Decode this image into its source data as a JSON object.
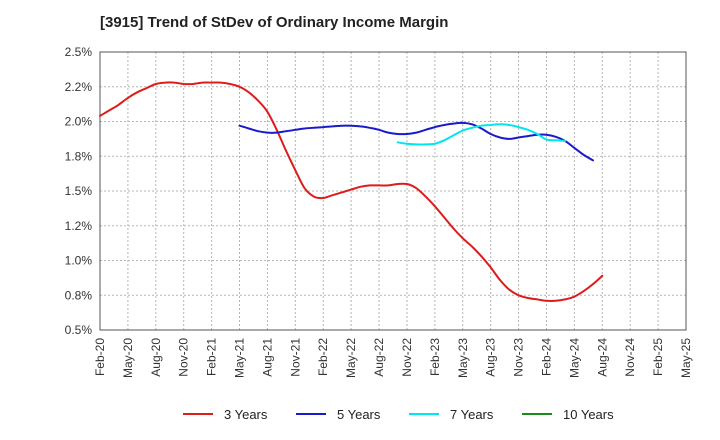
{
  "chart_data": {
    "type": "line",
    "title": "[3915]  Trend of StDev of Ordinary Income Margin",
    "xlabel": "",
    "ylabel": "",
    "ylim": [
      0.5,
      2.5
    ],
    "y_ticks": [
      "0.5%",
      "0.8%",
      "1.0%",
      "1.2%",
      "1.5%",
      "1.8%",
      "2.0%",
      "2.2%",
      "2.5%"
    ],
    "x_ticks": [
      "Feb-20",
      "May-20",
      "Aug-20",
      "Nov-20",
      "Feb-21",
      "May-21",
      "Aug-21",
      "Nov-21",
      "Feb-22",
      "May-22",
      "Aug-22",
      "Nov-22",
      "Feb-23",
      "May-23",
      "Aug-23",
      "Nov-23",
      "Feb-24",
      "May-24",
      "Aug-24",
      "Nov-24",
      "Feb-25",
      "May-25"
    ],
    "grid": true,
    "legend_position": "bottom",
    "series": [
      {
        "name": "3 Years",
        "color": "#dd1c1c",
        "values": [
          [
            "2020-02",
            2.04
          ],
          [
            "2020-03",
            2.08
          ],
          [
            "2020-04",
            2.12
          ],
          [
            "2020-05",
            2.17
          ],
          [
            "2020-06",
            2.21
          ],
          [
            "2020-07",
            2.24
          ],
          [
            "2020-08",
            2.27
          ],
          [
            "2020-09",
            2.28
          ],
          [
            "2020-10",
            2.28
          ],
          [
            "2020-11",
            2.27
          ],
          [
            "2020-12",
            2.27
          ],
          [
            "2021-01",
            2.28
          ],
          [
            "2021-02",
            2.28
          ],
          [
            "2021-03",
            2.28
          ],
          [
            "2021-04",
            2.27
          ],
          [
            "2021-05",
            2.25
          ],
          [
            "2021-06",
            2.21
          ],
          [
            "2021-07",
            2.15
          ],
          [
            "2021-08",
            2.07
          ],
          [
            "2021-09",
            1.94
          ],
          [
            "2021-10",
            1.79
          ],
          [
            "2021-11",
            1.65
          ],
          [
            "2021-12",
            1.52
          ],
          [
            "2022-01",
            1.46
          ],
          [
            "2022-02",
            1.45
          ],
          [
            "2022-03",
            1.47
          ],
          [
            "2022-04",
            1.49
          ],
          [
            "2022-05",
            1.51
          ],
          [
            "2022-06",
            1.53
          ],
          [
            "2022-07",
            1.54
          ],
          [
            "2022-08",
            1.54
          ],
          [
            "2022-09",
            1.54
          ],
          [
            "2022-10",
            1.55
          ],
          [
            "2022-11",
            1.55
          ],
          [
            "2022-12",
            1.52
          ],
          [
            "2023-01",
            1.46
          ],
          [
            "2023-02",
            1.39
          ],
          [
            "2023-03",
            1.31
          ],
          [
            "2023-04",
            1.23
          ],
          [
            "2023-05",
            1.16
          ],
          [
            "2023-06",
            1.1
          ],
          [
            "2023-07",
            1.03
          ],
          [
            "2023-08",
            0.95
          ],
          [
            "2023-09",
            0.86
          ],
          [
            "2023-10",
            0.79
          ],
          [
            "2023-11",
            0.75
          ],
          [
            "2023-12",
            0.73
          ],
          [
            "2024-01",
            0.72
          ],
          [
            "2024-02",
            0.71
          ],
          [
            "2024-03",
            0.71
          ],
          [
            "2024-04",
            0.72
          ],
          [
            "2024-05",
            0.74
          ],
          [
            "2024-06",
            0.78
          ],
          [
            "2024-07",
            0.83
          ],
          [
            "2024-08",
            0.89
          ]
        ]
      },
      {
        "name": "5 Years",
        "color": "#1a1acc",
        "values": [
          [
            "2021-05",
            1.97
          ],
          [
            "2021-06",
            1.95
          ],
          [
            "2021-07",
            1.93
          ],
          [
            "2021-08",
            1.92
          ],
          [
            "2021-09",
            1.92
          ],
          [
            "2021-10",
            1.93
          ],
          [
            "2021-11",
            1.94
          ],
          [
            "2021-12",
            1.95
          ],
          [
            "2022-01",
            1.955
          ],
          [
            "2022-02",
            1.96
          ],
          [
            "2022-03",
            1.965
          ],
          [
            "2022-04",
            1.97
          ],
          [
            "2022-05",
            1.97
          ],
          [
            "2022-06",
            1.965
          ],
          [
            "2022-07",
            1.955
          ],
          [
            "2022-08",
            1.94
          ],
          [
            "2022-09",
            1.92
          ],
          [
            "2022-10",
            1.91
          ],
          [
            "2022-11",
            1.91
          ],
          [
            "2022-12",
            1.92
          ],
          [
            "2023-01",
            1.94
          ],
          [
            "2023-02",
            1.96
          ],
          [
            "2023-03",
            1.975
          ],
          [
            "2023-04",
            1.985
          ],
          [
            "2023-05",
            1.99
          ],
          [
            "2023-06",
            1.98
          ],
          [
            "2023-07",
            1.95
          ],
          [
            "2023-08",
            1.91
          ],
          [
            "2023-09",
            1.885
          ],
          [
            "2023-10",
            1.875
          ],
          [
            "2023-11",
            1.885
          ],
          [
            "2023-12",
            1.895
          ],
          [
            "2024-01",
            1.905
          ],
          [
            "2024-02",
            1.905
          ],
          [
            "2024-03",
            1.89
          ],
          [
            "2024-04",
            1.86
          ],
          [
            "2024-05",
            1.81
          ],
          [
            "2024-06",
            1.76
          ],
          [
            "2024-07",
            1.72
          ]
        ]
      },
      {
        "name": "7 Years",
        "color": "#00e5ee",
        "values": [
          [
            "2022-10",
            1.85
          ],
          [
            "2022-11",
            1.84
          ],
          [
            "2022-12",
            1.835
          ],
          [
            "2023-01",
            1.835
          ],
          [
            "2023-02",
            1.84
          ],
          [
            "2023-03",
            1.865
          ],
          [
            "2023-04",
            1.9
          ],
          [
            "2023-05",
            1.935
          ],
          [
            "2023-06",
            1.955
          ],
          [
            "2023-07",
            1.97
          ],
          [
            "2023-08",
            1.975
          ],
          [
            "2023-09",
            1.98
          ],
          [
            "2023-10",
            1.975
          ],
          [
            "2023-11",
            1.96
          ],
          [
            "2023-12",
            1.94
          ],
          [
            "2024-01",
            1.91
          ],
          [
            "2024-02",
            1.87
          ],
          [
            "2024-03",
            1.865
          ],
          [
            "2024-04",
            1.86
          ]
        ]
      },
      {
        "name": "10 Years",
        "color": "#1a8a1a",
        "values": []
      }
    ]
  }
}
